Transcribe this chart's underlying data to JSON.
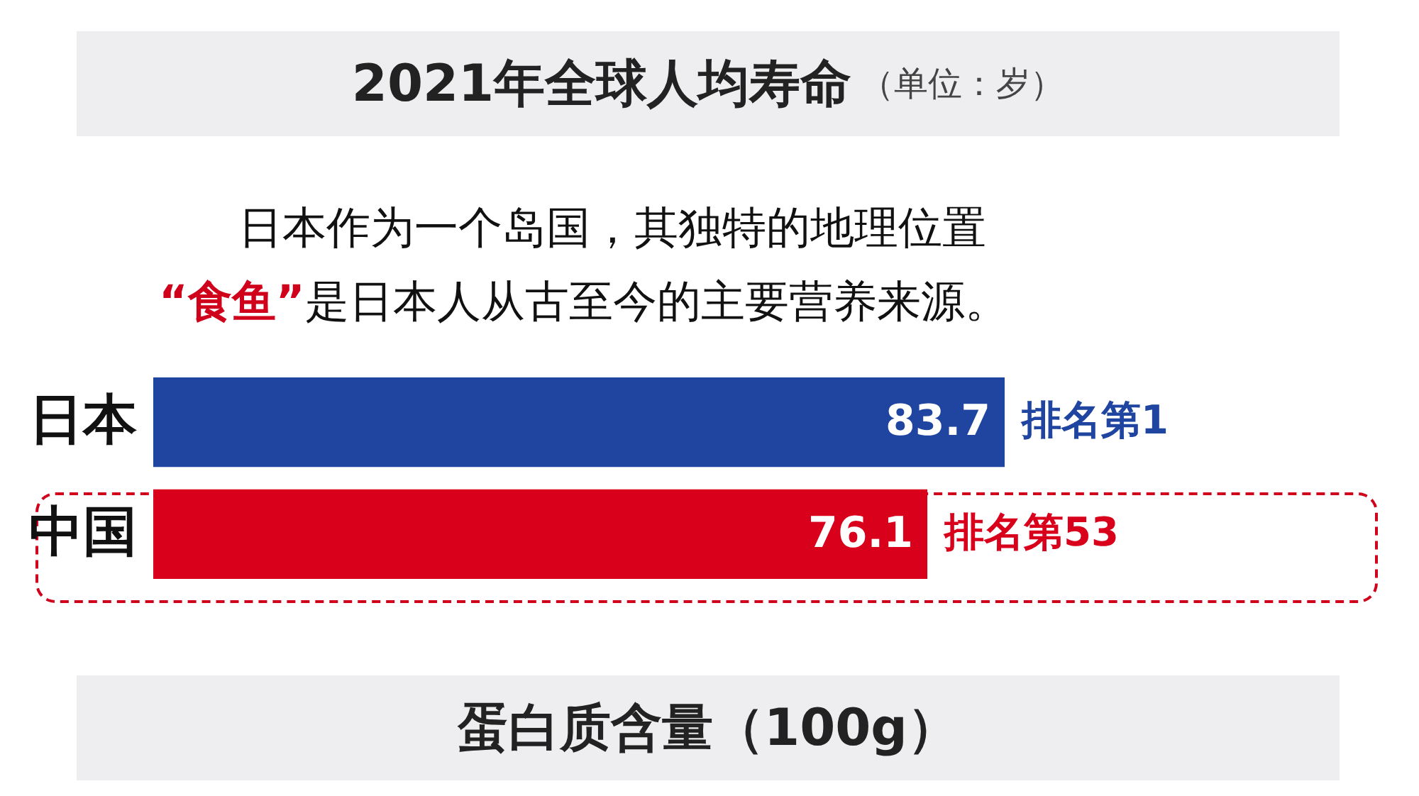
{
  "chart_data": {
    "type": "bar",
    "orientation": "horizontal",
    "title": "2021年全球人均寿命",
    "subtitle": "（单位：岁）",
    "categories": [
      "日本",
      "中国"
    ],
    "values": [
      83.7,
      76.1
    ],
    "colors": [
      "#1f45a0",
      "#d9001b"
    ],
    "data_labels": true,
    "annotations": [
      "日本作为一个岛国，其独特的地理位置",
      "“食鱼”是日本人从古至今的主要营养来源。",
      {
        "text": "排名第1",
        "x": 83.7,
        "y": "日本"
      },
      {
        "text": "排名第53",
        "x": 76.1,
        "y": "中国"
      },
      "蛋白质含量（100g）"
    ]
  }
}
